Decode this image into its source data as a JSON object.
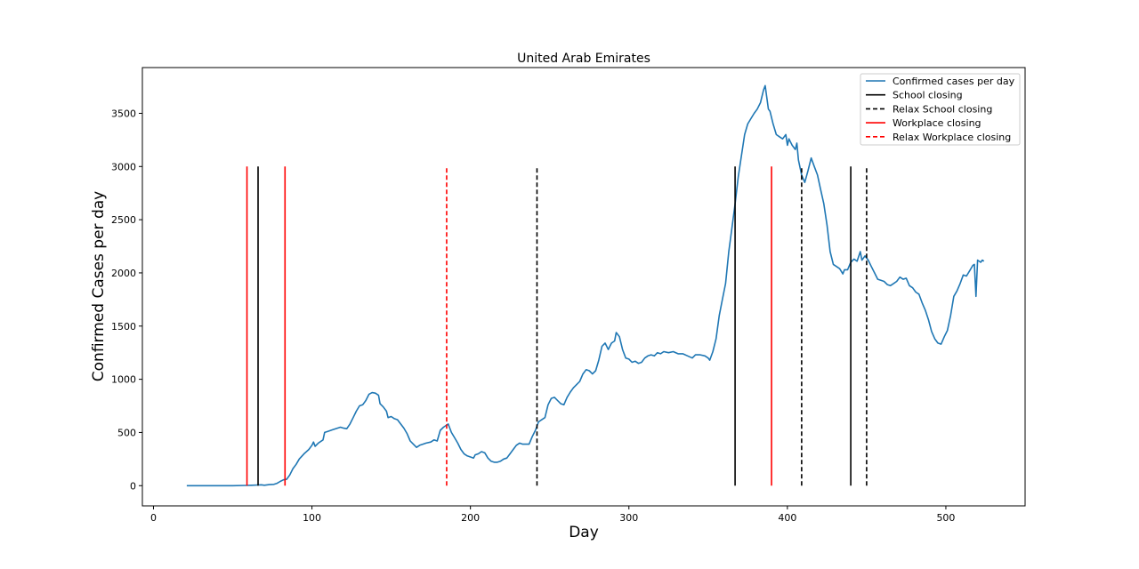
{
  "chart_data": {
    "type": "line",
    "title": "United Arab Emirates",
    "xlabel": "Day",
    "ylabel": "Confirmed Cases per day",
    "xlim": [
      -7,
      550
    ],
    "ylim": [
      -190,
      3930
    ],
    "xticks": [
      0,
      100,
      200,
      300,
      400,
      500
    ],
    "yticks": [
      0,
      500,
      1000,
      1500,
      2000,
      2500,
      3000,
      3500
    ],
    "grid": false,
    "legend_position": "top-right",
    "series": [
      {
        "name": "Confirmed cases per day",
        "color": "#1f77b4",
        "points": [
          [
            21,
            0
          ],
          [
            30,
            0
          ],
          [
            40,
            0
          ],
          [
            50,
            0
          ],
          [
            58,
            2
          ],
          [
            62,
            4
          ],
          [
            66,
            6
          ],
          [
            68,
            8
          ],
          [
            70,
            4
          ],
          [
            73,
            10
          ],
          [
            76,
            12
          ],
          [
            78,
            22
          ],
          [
            80,
            40
          ],
          [
            82,
            55
          ],
          [
            84,
            60
          ],
          [
            86,
            100
          ],
          [
            88,
            160
          ],
          [
            90,
            200
          ],
          [
            92,
            250
          ],
          [
            95,
            300
          ],
          [
            98,
            340
          ],
          [
            100,
            380
          ],
          [
            101,
            410
          ],
          [
            102,
            370
          ],
          [
            104,
            400
          ],
          [
            107,
            430
          ],
          [
            108,
            500
          ],
          [
            110,
            510
          ],
          [
            113,
            525
          ],
          [
            116,
            540
          ],
          [
            118,
            550
          ],
          [
            120,
            540
          ],
          [
            122,
            535
          ],
          [
            124,
            580
          ],
          [
            126,
            640
          ],
          [
            128,
            700
          ],
          [
            130,
            750
          ],
          [
            132,
            760
          ],
          [
            134,
            800
          ],
          [
            136,
            860
          ],
          [
            138,
            875
          ],
          [
            140,
            870
          ],
          [
            142,
            850
          ],
          [
            143,
            770
          ],
          [
            145,
            740
          ],
          [
            147,
            700
          ],
          [
            148,
            640
          ],
          [
            150,
            650
          ],
          [
            152,
            630
          ],
          [
            154,
            620
          ],
          [
            156,
            580
          ],
          [
            158,
            540
          ],
          [
            160,
            490
          ],
          [
            162,
            420
          ],
          [
            164,
            390
          ],
          [
            166,
            360
          ],
          [
            168,
            380
          ],
          [
            170,
            390
          ],
          [
            172,
            400
          ],
          [
            175,
            410
          ],
          [
            177,
            430
          ],
          [
            179,
            420
          ],
          [
            181,
            520
          ],
          [
            183,
            550
          ],
          [
            185,
            570
          ],
          [
            186,
            580
          ],
          [
            187,
            540
          ],
          [
            188,
            500
          ],
          [
            190,
            450
          ],
          [
            192,
            400
          ],
          [
            194,
            340
          ],
          [
            196,
            300
          ],
          [
            198,
            280
          ],
          [
            200,
            270
          ],
          [
            202,
            260
          ],
          [
            203,
            290
          ],
          [
            205,
            300
          ],
          [
            207,
            320
          ],
          [
            209,
            310
          ],
          [
            211,
            260
          ],
          [
            213,
            230
          ],
          [
            215,
            220
          ],
          [
            217,
            220
          ],
          [
            219,
            230
          ],
          [
            221,
            250
          ],
          [
            223,
            260
          ],
          [
            225,
            300
          ],
          [
            227,
            340
          ],
          [
            229,
            380
          ],
          [
            231,
            400
          ],
          [
            233,
            390
          ],
          [
            235,
            390
          ],
          [
            237,
            390
          ],
          [
            239,
            460
          ],
          [
            241,
            520
          ],
          [
            243,
            600
          ],
          [
            245,
            620
          ],
          [
            247,
            640
          ],
          [
            249,
            760
          ],
          [
            251,
            820
          ],
          [
            253,
            830
          ],
          [
            255,
            800
          ],
          [
            257,
            770
          ],
          [
            259,
            760
          ],
          [
            261,
            830
          ],
          [
            263,
            880
          ],
          [
            265,
            920
          ],
          [
            267,
            950
          ],
          [
            269,
            980
          ],
          [
            271,
            1050
          ],
          [
            273,
            1090
          ],
          [
            275,
            1080
          ],
          [
            277,
            1050
          ],
          [
            279,
            1080
          ],
          [
            281,
            1180
          ],
          [
            283,
            1310
          ],
          [
            285,
            1340
          ],
          [
            287,
            1280
          ],
          [
            289,
            1340
          ],
          [
            291,
            1360
          ],
          [
            292,
            1440
          ],
          [
            294,
            1400
          ],
          [
            296,
            1280
          ],
          [
            298,
            1200
          ],
          [
            300,
            1190
          ],
          [
            302,
            1160
          ],
          [
            304,
            1170
          ],
          [
            306,
            1150
          ],
          [
            308,
            1160
          ],
          [
            310,
            1200
          ],
          [
            312,
            1220
          ],
          [
            314,
            1230
          ],
          [
            316,
            1220
          ],
          [
            318,
            1250
          ],
          [
            320,
            1240
          ],
          [
            322,
            1260
          ],
          [
            325,
            1250
          ],
          [
            328,
            1260
          ],
          [
            331,
            1240
          ],
          [
            334,
            1240
          ],
          [
            337,
            1220
          ],
          [
            340,
            1200
          ],
          [
            342,
            1230
          ],
          [
            345,
            1230
          ],
          [
            348,
            1220
          ],
          [
            350,
            1200
          ],
          [
            351,
            1180
          ],
          [
            353,
            1260
          ],
          [
            355,
            1380
          ],
          [
            357,
            1600
          ],
          [
            359,
            1750
          ],
          [
            361,
            1900
          ],
          [
            363,
            2200
          ],
          [
            365,
            2420
          ],
          [
            367,
            2650
          ],
          [
            369,
            2900
          ],
          [
            371,
            3100
          ],
          [
            373,
            3300
          ],
          [
            375,
            3400
          ],
          [
            377,
            3450
          ],
          [
            379,
            3500
          ],
          [
            381,
            3540
          ],
          [
            383,
            3600
          ],
          [
            385,
            3720
          ],
          [
            386,
            3760
          ],
          [
            387,
            3650
          ],
          [
            388,
            3540
          ],
          [
            389,
            3520
          ],
          [
            391,
            3400
          ],
          [
            393,
            3300
          ],
          [
            395,
            3280
          ],
          [
            397,
            3260
          ],
          [
            399,
            3300
          ],
          [
            400,
            3200
          ],
          [
            401,
            3260
          ],
          [
            403,
            3200
          ],
          [
            405,
            3160
          ],
          [
            406,
            3220
          ],
          [
            407,
            3060
          ],
          [
            409,
            2920
          ],
          [
            411,
            2850
          ],
          [
            413,
            2960
          ],
          [
            415,
            3080
          ],
          [
            417,
            3000
          ],
          [
            419,
            2920
          ],
          [
            421,
            2780
          ],
          [
            423,
            2650
          ],
          [
            425,
            2450
          ],
          [
            427,
            2200
          ],
          [
            429,
            2080
          ],
          [
            431,
            2060
          ],
          [
            433,
            2040
          ],
          [
            435,
            1990
          ],
          [
            436,
            2030
          ],
          [
            438,
            2030
          ],
          [
            440,
            2100
          ],
          [
            442,
            2130
          ],
          [
            444,
            2110
          ],
          [
            446,
            2200
          ],
          [
            447,
            2120
          ],
          [
            449,
            2160
          ],
          [
            451,
            2120
          ],
          [
            453,
            2060
          ],
          [
            455,
            2000
          ],
          [
            457,
            1940
          ],
          [
            459,
            1930
          ],
          [
            461,
            1920
          ],
          [
            463,
            1890
          ],
          [
            465,
            1880
          ],
          [
            467,
            1900
          ],
          [
            469,
            1920
          ],
          [
            471,
            1960
          ],
          [
            473,
            1940
          ],
          [
            475,
            1950
          ],
          [
            477,
            1880
          ],
          [
            479,
            1860
          ],
          [
            481,
            1820
          ],
          [
            483,
            1800
          ],
          [
            485,
            1720
          ],
          [
            487,
            1650
          ],
          [
            489,
            1560
          ],
          [
            491,
            1450
          ],
          [
            493,
            1380
          ],
          [
            495,
            1340
          ],
          [
            497,
            1330
          ],
          [
            499,
            1400
          ],
          [
            501,
            1460
          ],
          [
            503,
            1600
          ],
          [
            505,
            1780
          ],
          [
            507,
            1830
          ],
          [
            509,
            1900
          ],
          [
            511,
            1980
          ],
          [
            513,
            1970
          ],
          [
            515,
            2020
          ],
          [
            517,
            2070
          ],
          [
            518,
            2080
          ],
          [
            519,
            1780
          ],
          [
            520,
            2120
          ],
          [
            522,
            2100
          ],
          [
            523,
            2120
          ],
          [
            524,
            2110
          ]
        ]
      }
    ],
    "policy_lines": [
      {
        "legend": "School closing",
        "color": "#000000",
        "dashed": false,
        "x": [
          66,
          367,
          440
        ]
      },
      {
        "legend": "Relax School closing",
        "color": "#000000",
        "dashed": true,
        "x": [
          242,
          409,
          450
        ]
      },
      {
        "legend": "Workplace closing",
        "color": "#ff0000",
        "dashed": false,
        "x": [
          59,
          83,
          390
        ]
      },
      {
        "legend": "Relax Workplace closing",
        "color": "#ff0000",
        "dashed": true,
        "x": [
          185
        ]
      }
    ],
    "policy_line_ymax": 3000
  }
}
